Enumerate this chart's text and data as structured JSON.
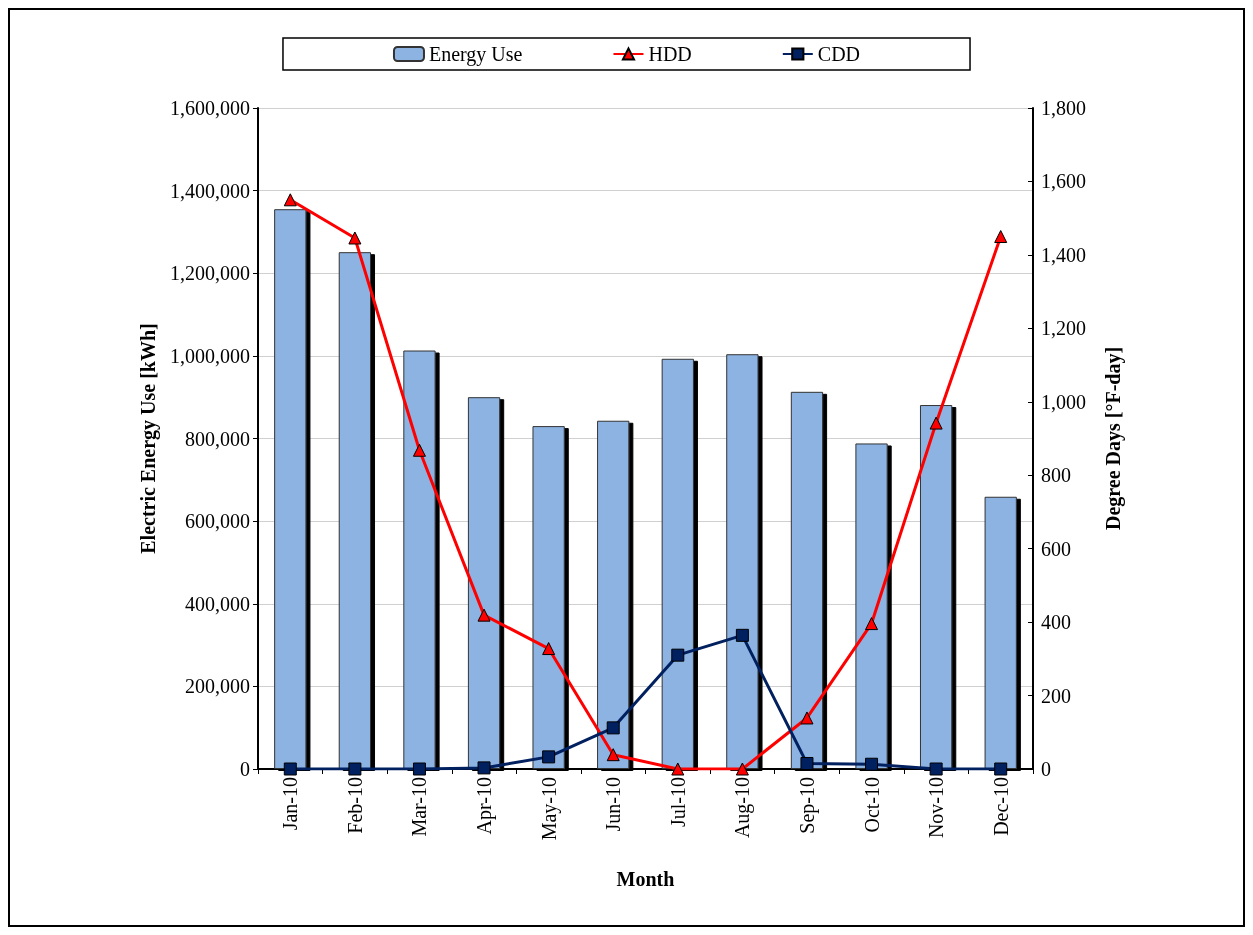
{
  "chart_data": {
    "type": "bar",
    "xlabel": "Month",
    "ylabel": "Electric Energy Use [kWh]",
    "y2label": "Degree Days [°F-day]",
    "categories": [
      "Jan-10",
      "Feb-10",
      "Mar-10",
      "Apr-10",
      "May-10",
      "Jun-10",
      "Jul-10",
      "Aug-10",
      "Sep-10",
      "Oct-10",
      "Nov-10",
      "Dec-10"
    ],
    "series": [
      {
        "name": "Energy Use",
        "color": "#8db3e2",
        "values": [
          1355000,
          1251000,
          1013000,
          900000,
          830000,
          843000,
          993000,
          1004000,
          913000,
          788000,
          881000,
          659000
        ]
      },
      {
        "name": "HDD",
        "type": "line",
        "axis": "y2",
        "color": "#ff0000",
        "marker": "triangle",
        "values": [
          1550,
          1446,
          868,
          419,
          328,
          39,
          0,
          0,
          139,
          396,
          942,
          1450
        ]
      },
      {
        "name": "CDD",
        "type": "line",
        "axis": "y2",
        "color": "#002060",
        "marker": "square",
        "values": [
          0,
          0,
          0,
          3,
          33,
          112,
          310,
          364,
          15,
          13,
          0,
          0
        ]
      }
    ],
    "ylim": [
      0,
      1600000
    ],
    "yticks": [
      0,
      {
        "value": 200000,
        "label": "200,000"
      },
      {
        "value": 400000,
        "label": "400,000"
      },
      {
        "value": 600000,
        "label": "600,000"
      },
      {
        "value": 800000,
        "label": "800,000"
      },
      {
        "value": 1000000,
        "label": "1,000,000"
      },
      {
        "value": 1200000,
        "label": "1,200,000"
      },
      {
        "value": 1400000,
        "label": "1,400,000"
      },
      {
        "value": 1600000,
        "label": "1,600,000"
      }
    ],
    "y2lim": [
      0,
      1800
    ],
    "y2ticks": [
      0,
      200,
      400,
      600,
      800,
      {
        "value": 1000,
        "label": "1,000"
      },
      {
        "value": 1200,
        "label": "1,200"
      },
      {
        "value": 1400,
        "label": "1,400"
      },
      {
        "value": 1600,
        "label": "1,600"
      },
      {
        "value": 1800,
        "label": "1,800"
      }
    ],
    "grid": "y",
    "legend": "top"
  }
}
